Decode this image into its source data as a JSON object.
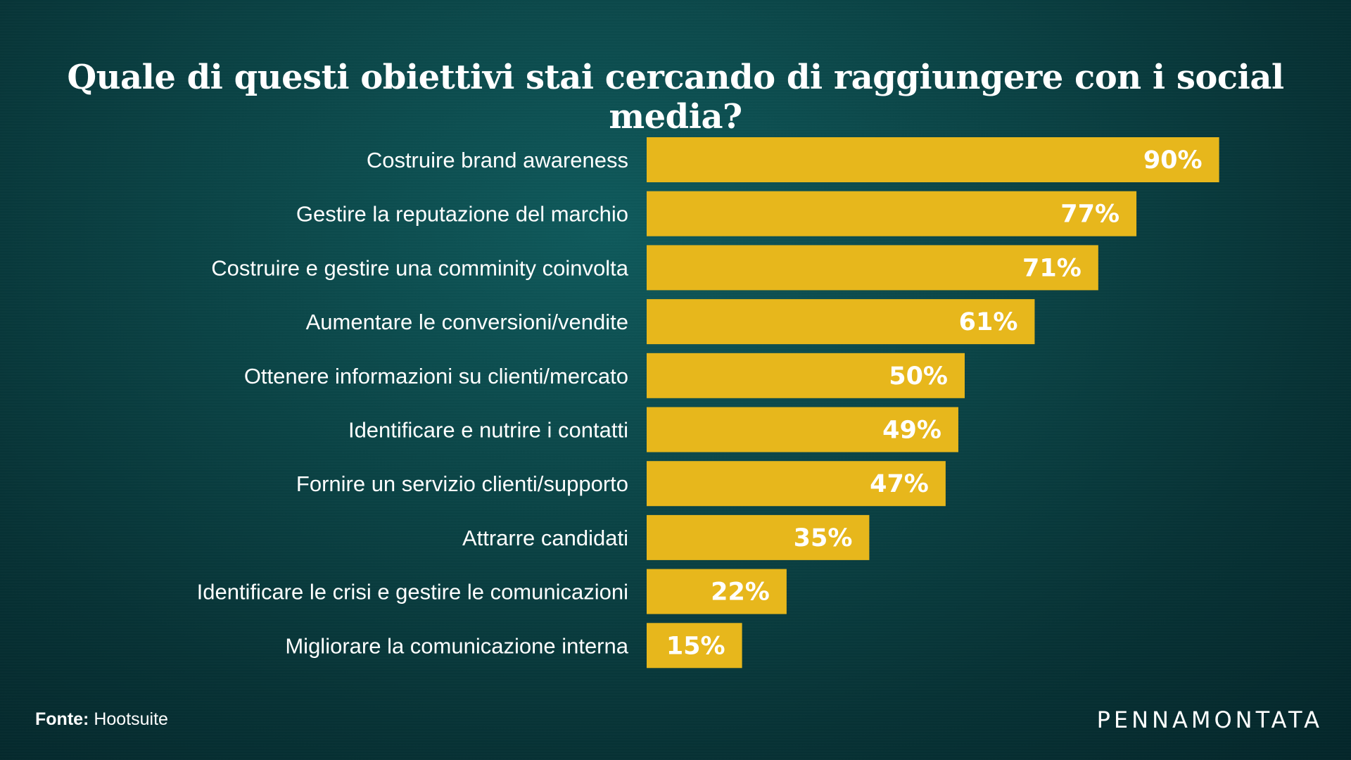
{
  "title": "Quale di questi obiettivi stai cercando di raggiungere con i social media?",
  "chart_data": {
    "type": "bar",
    "orientation": "horizontal",
    "categories": [
      "Costruire brand awareness",
      "Gestire la reputazione del marchio",
      "Costruire e gestire una comminity coinvolta",
      "Aumentare le conversioni/vendite",
      "Ottenere informazioni su clienti/mercato",
      "Identificare e nutrire i contatti",
      "Fornire un servizio clienti/supporto",
      "Attrarre candidati",
      "Identificare le crisi e gestire le comunicazioni",
      "Migliorare la comunicazione interna"
    ],
    "values": [
      90,
      77,
      71,
      61,
      50,
      49,
      47,
      35,
      22,
      15
    ],
    "value_labels": [
      "90%",
      "77%",
      "71%",
      "61%",
      "50%",
      "49%",
      "47%",
      "35%",
      "22%",
      "15%"
    ],
    "unit": "%",
    "xlim": [
      0,
      100
    ],
    "grid": false,
    "bar_color": "#e7b71c",
    "label_color": "#ffffff"
  },
  "source": {
    "label": "Fonte:",
    "name": "Hootsuite"
  },
  "logo": "PENNAMONTATA",
  "colors": {
    "background": "#0b4648",
    "bar": "#e7b71c",
    "text": "#ffffff"
  }
}
